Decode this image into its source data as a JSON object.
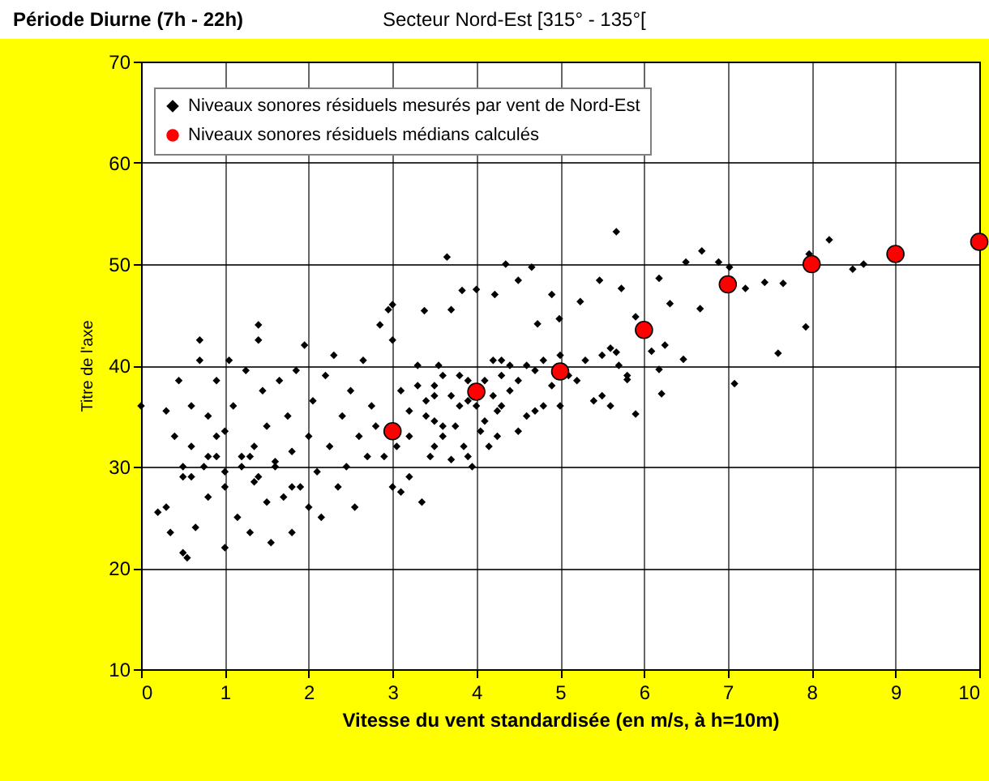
{
  "chart_data": {
    "type": "scatter",
    "title": "Période Diurne (7h - 22h)",
    "subtitle": "Secteur Nord-Est [315° - 135°[",
    "xlabel": "Vitesse du vent standardisée (en m/s, à h=10m)",
    "ylabel": "Titre de l'axe",
    "xlim": [
      0,
      10
    ],
    "xticks": [
      0,
      1,
      2,
      3,
      4,
      5,
      6,
      7,
      8,
      9,
      10
    ],
    "ylim": [
      10,
      70
    ],
    "yticks": [
      10,
      20,
      30,
      40,
      50,
      60,
      70
    ],
    "grid": true,
    "legend": "top left",
    "series": [
      {
        "name": "Niveaux sonores résiduels mesurés par vent de Nord-Est",
        "color": "#000000",
        "marker": "diamond",
        "x": [
          0,
          0.2,
          0.3,
          0.3,
          0.35,
          0.4,
          0.45,
          0.5,
          0.55,
          0.5,
          0.6,
          0.6,
          0.65,
          0.7,
          0.7,
          0.75,
          0.8,
          0.8,
          0.9,
          0.9,
          1,
          1,
          1,
          1.05,
          1.1,
          1.15,
          1.2,
          1.25,
          1.3,
          1.35,
          1.35,
          1.4,
          1.4,
          1.45,
          1.5,
          1.5,
          1.55,
          1.6,
          1.65,
          1.7,
          1.75,
          1.8,
          1.8,
          1.85,
          1.9,
          1.95,
          2,
          2,
          2.05,
          2.1,
          2.15,
          2.2,
          2.25,
          2.3,
          2.35,
          2.4,
          2.45,
          2.5,
          2.55,
          2.6,
          2.65,
          2.7,
          2.75,
          2.8,
          2.85,
          2.9,
          2.95,
          3,
          3,
          3,
          3.05,
          3.1,
          3.2,
          3.2,
          3.3,
          3.35,
          3.4,
          3.45,
          3.5,
          3.55,
          3.6,
          3.6,
          3.65,
          3.7,
          3.7,
          3.8,
          3.85,
          3.9,
          3.95,
          4,
          4.05,
          4.1,
          4.15,
          4.2,
          4.25,
          4.3,
          4.3,
          3.38,
          4.35,
          4.66,
          5.67,
          3.83,
          4.22,
          4.9,
          4.5,
          5.47,
          5.73,
          5.24,
          4.99,
          4.73,
          5.6,
          5.8,
          5.9,
          6.18,
          6.5,
          6.69,
          6.89,
          7.02,
          7.21,
          6.67,
          6.31,
          6.47,
          7.08,
          7.44,
          7.66,
          7.6,
          7.93,
          7.97,
          8.21,
          8.49,
          8.62,
          6.18,
          6.21,
          5.9,
          5.67,
          6.09,
          6.25,
          3.1,
          3.2,
          3.3,
          3.4,
          3.5,
          3.5,
          3.6,
          3.7,
          3.75,
          3.8,
          3.9,
          4,
          4.1,
          4.2,
          4.3,
          4.4,
          4.4,
          4.5,
          4.6,
          4.6,
          4.7,
          4.8,
          4.8,
          4.9,
          5,
          5,
          5.1,
          5.2,
          5.3,
          5.4,
          5.5,
          5.5,
          5.6,
          5.7,
          5.8,
          4.5,
          4.7,
          3.9,
          3.5,
          4.25,
          0.6,
          0.8,
          1.0,
          1.2,
          1.4,
          1.6,
          1.8,
          0.5,
          0.9,
          1.3
        ],
        "values": [
          36,
          25.5,
          26,
          35.5,
          23.5,
          33,
          38.5,
          21.5,
          21,
          29,
          32,
          36,
          24,
          42.5,
          40.5,
          30,
          27,
          35,
          31,
          38.5,
          22,
          28,
          33.5,
          40.5,
          36,
          25,
          30,
          39.5,
          23.5,
          32,
          28.5,
          44,
          42.5,
          37.5,
          26.5,
          34,
          22.5,
          30,
          38.5,
          27,
          35,
          23.5,
          31.5,
          39.5,
          28,
          42,
          33,
          26,
          36.5,
          29.5,
          25,
          39,
          32,
          41,
          28,
          35,
          30,
          37.5,
          26,
          33,
          40.5,
          31,
          36,
          34,
          44,
          31,
          45.5,
          46,
          42.5,
          28,
          32,
          27.5,
          33,
          29,
          40,
          26.5,
          35,
          31,
          37,
          40,
          34,
          33,
          50.7,
          30.7,
          45.5,
          39,
          32,
          36.5,
          30,
          47.5,
          33.5,
          38.5,
          32,
          40.5,
          35.5,
          36,
          40.5,
          45.4,
          50,
          49.7,
          53.2,
          47.4,
          47,
          47,
          48.4,
          48.4,
          47.6,
          46.3,
          44.6,
          44.1,
          41.7,
          38.6,
          35.2,
          48.6,
          50.2,
          51.3,
          50.2,
          49.7,
          47.6,
          45.6,
          46.1,
          40.6,
          38.2,
          48.2,
          48.1,
          41.2,
          43.8,
          51,
          52.4,
          49.5,
          50,
          39.6,
          37.2,
          44.8,
          41.3,
          41.4,
          42,
          37.5,
          35.5,
          38,
          36.5,
          38,
          34.5,
          39,
          37,
          34,
          36,
          38.5,
          36,
          34.5,
          37,
          39,
          40,
          37.5,
          38.5,
          40,
          35,
          39.5,
          40.5,
          36,
          38,
          41,
          36,
          39,
          38.5,
          40.5,
          36.5,
          37,
          41,
          36,
          40,
          39,
          33.5,
          35.5,
          31,
          32,
          33,
          29,
          31,
          29.5,
          31,
          29,
          30.5,
          28,
          30,
          33,
          31
        ]
      },
      {
        "name": "Niveaux sonores résiduels médians calculés",
        "color": "#ff0000",
        "marker": "circle",
        "x": [
          3,
          4,
          5,
          6,
          7,
          8,
          9,
          10
        ],
        "values": [
          33.5,
          37.4,
          39.4,
          43.5,
          48,
          50,
          51,
          52.2
        ]
      }
    ]
  }
}
